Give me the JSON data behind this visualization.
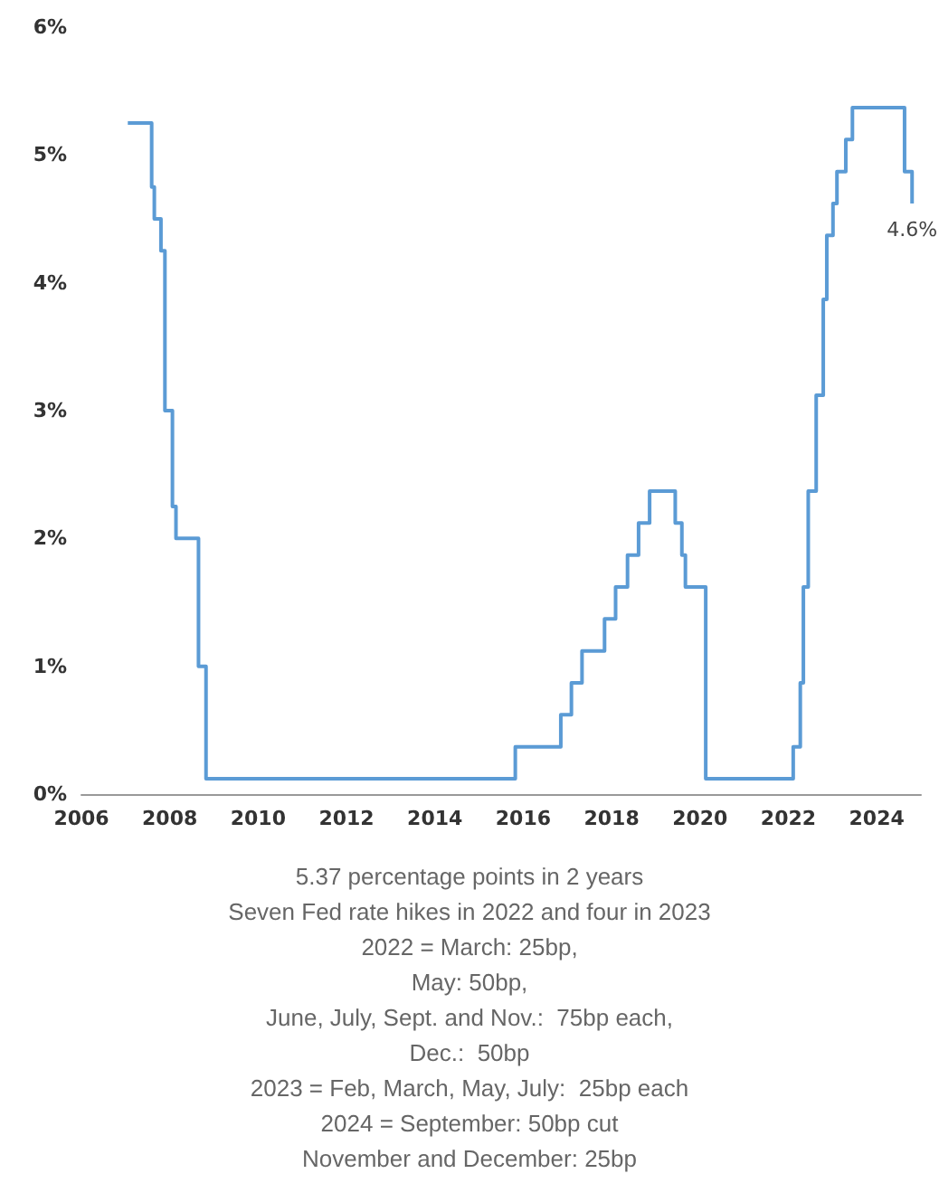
{
  "chart_data": {
    "type": "step",
    "x": [
      2007.05,
      2007.59,
      2007.65,
      2007.8,
      2007.89,
      2008.06,
      2008.14,
      2008.65,
      2008.82,
      2015.82,
      2016.85,
      2017.09,
      2017.33,
      2017.84,
      2018.09,
      2018.36,
      2018.61,
      2018.86,
      2019.44,
      2019.59,
      2019.67,
      2020.13,
      2022.11,
      2022.27,
      2022.34,
      2022.45,
      2022.63,
      2022.79,
      2022.87,
      2023.01,
      2023.1,
      2023.3,
      2023.45,
      2024.63,
      2024.8
    ],
    "series": [
      {
        "color": "#5b9bd5",
        "values": [
          5.25,
          4.75,
          4.5,
          4.25,
          3.0,
          2.25,
          2.0,
          1.0,
          0.12,
          0.37,
          0.62,
          0.87,
          1.12,
          1.37,
          1.62,
          1.87,
          2.12,
          2.37,
          2.12,
          1.87,
          1.62,
          0.12,
          0.37,
          0.87,
          1.62,
          2.37,
          3.12,
          3.87,
          4.37,
          4.62,
          4.87,
          5.12,
          5.37,
          4.87,
          4.62
        ]
      }
    ],
    "xlim": [
      2006,
      2025
    ],
    "xticks": [
      2006,
      2008,
      2010,
      2012,
      2014,
      2016,
      2018,
      2020,
      2022,
      2024
    ],
    "ylim": [
      0,
      6
    ],
    "yticks": [
      {
        "value": 0,
        "label": "0%"
      },
      {
        "value": 1,
        "label": "1%"
      },
      {
        "value": 2,
        "label": "2%"
      },
      {
        "value": 3,
        "label": "3%"
      },
      {
        "value": 4,
        "label": "4%"
      },
      {
        "value": 5,
        "label": "5%"
      },
      {
        "value": 6,
        "label": "6%"
      }
    ],
    "grid": false,
    "marker": "none",
    "line_style": "solid",
    "annotations": [
      {
        "text": "4.6%",
        "x": 2024.8,
        "y": 4.62
      },
      "5.37 percentage points in 2 years",
      "Seven Fed rate hikes in 2022 and four in 2023",
      "2022 = March: 25bp,",
      "May: 50bp,",
      "June, July, Sept. and Nov.:  75bp each,",
      "Dec.:  50bp",
      "2023 = Feb, March, May, July:  25bp each",
      "2024 = September: 50bp cut",
      "November and December: 25bp"
    ]
  }
}
